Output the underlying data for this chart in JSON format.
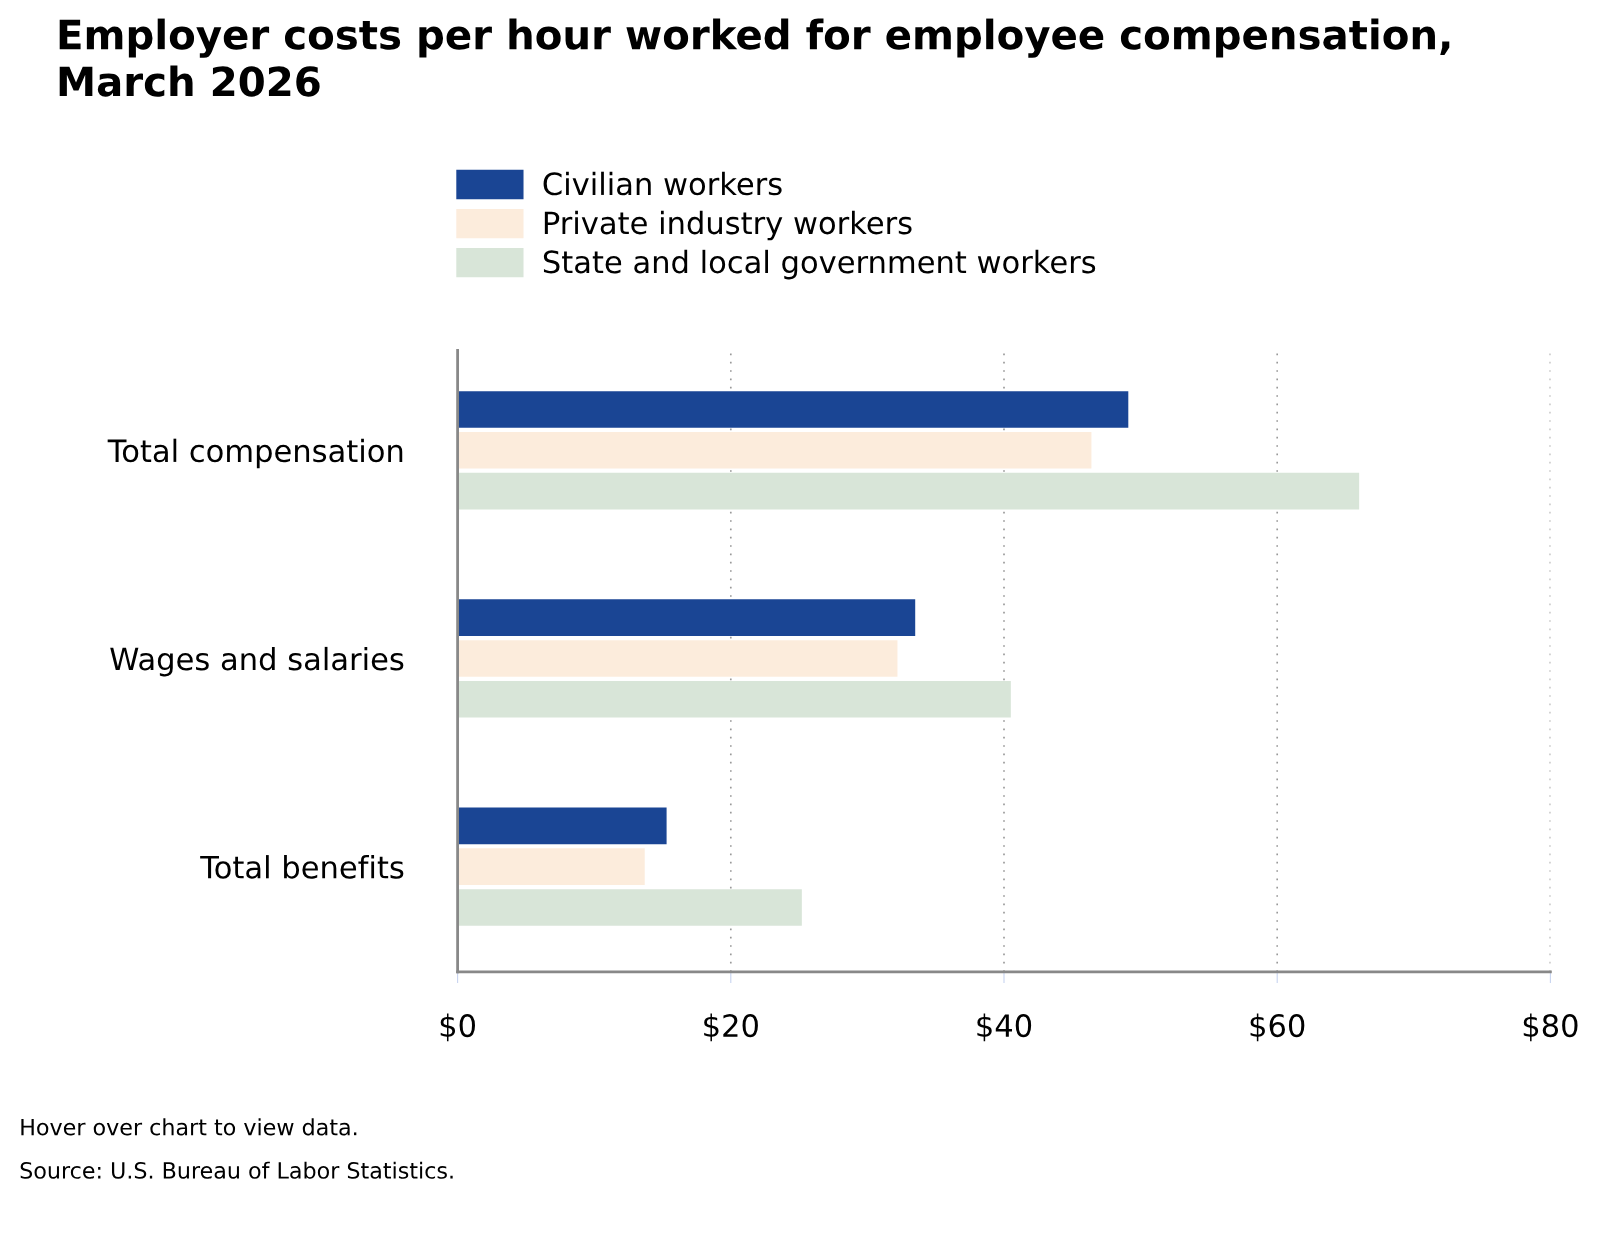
{
  "chart_data": {
    "type": "bar",
    "orientation": "horizontal",
    "title": "Employer costs per hour worked for employee compensation,\nMarch 2026",
    "categories": [
      "Total compensation",
      "Wages and salaries",
      "Total benefits"
    ],
    "series": [
      {
        "name": "Civilian workers",
        "color": "#1a4594",
        "values": [
          49.1,
          33.5,
          15.3
        ]
      },
      {
        "name": "Private industry workers",
        "color": "#fcecdc",
        "values": [
          46.4,
          32.2,
          13.7
        ]
      },
      {
        "name": "State and local government workers",
        "color": "#d8e5d8",
        "values": [
          66.0,
          40.5,
          25.2
        ]
      }
    ],
    "xlim": [
      0,
      80
    ],
    "xticks": [
      {
        "value": 0,
        "label": "$0"
      },
      {
        "value": 20,
        "label": "$20"
      },
      {
        "value": 40,
        "label": "$40"
      },
      {
        "value": 60,
        "label": "$60"
      },
      {
        "value": 80,
        "label": "$80"
      }
    ],
    "grid": "x",
    "legend": "top",
    "annotations": [
      "Hover over chart to view data.",
      "Source: U.S. Bureau of Labor Statistics."
    ]
  }
}
